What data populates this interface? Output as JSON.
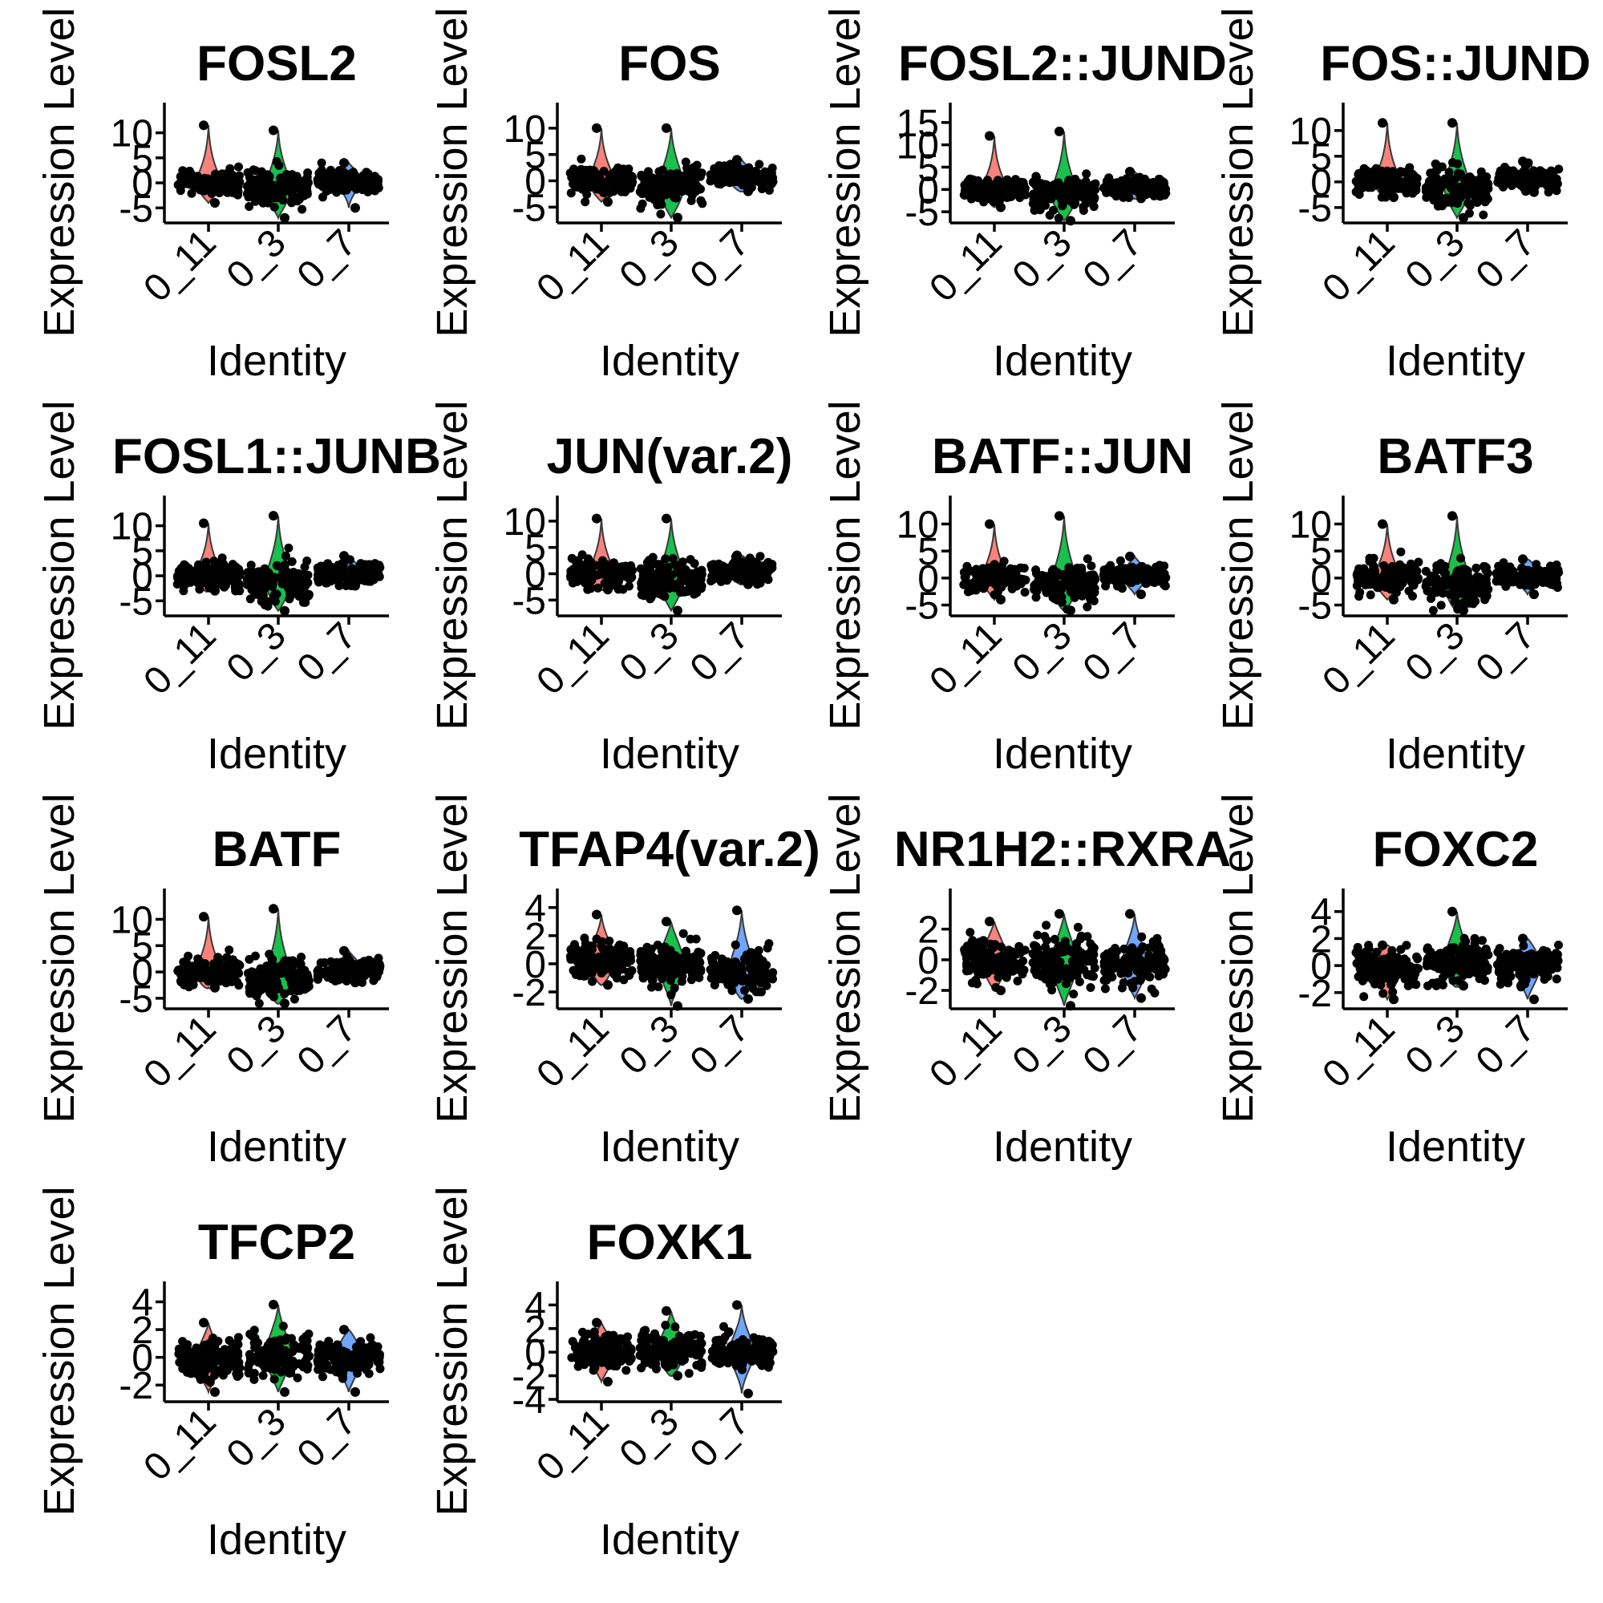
{
  "chart_data": [
    {
      "type": "violin",
      "title": "FOSL2",
      "xlabel": "Identity",
      "ylabel": "Expression Level",
      "categories": [
        "0_11",
        "0_3",
        "0_7"
      ],
      "yticks": [
        -5,
        0,
        5,
        10
      ],
      "ylim": [
        -8,
        12.5
      ],
      "series": [
        {
          "category": "0_11",
          "median": 0,
          "spread": 2.2,
          "max": 11.5,
          "min": -4
        },
        {
          "category": "0_3",
          "median": -1,
          "spread": 3.2,
          "max": 10.5,
          "min": -7
        },
        {
          "category": "0_7",
          "median": 0.5,
          "spread": 1.8,
          "max": 4,
          "min": -5
        }
      ]
    },
    {
      "type": "violin",
      "title": "FOS",
      "xlabel": "Identity",
      "ylabel": "Expression Level",
      "categories": [
        "0_11",
        "0_3",
        "0_7"
      ],
      "yticks": [
        -5,
        0,
        5,
        10
      ],
      "ylim": [
        -8,
        11.5
      ],
      "series": [
        {
          "category": "0_11",
          "median": 0,
          "spread": 2.3,
          "max": 10,
          "min": -4
        },
        {
          "category": "0_3",
          "median": -1,
          "spread": 3.4,
          "max": 10,
          "min": -7
        },
        {
          "category": "0_7",
          "median": 0.5,
          "spread": 1.8,
          "max": 4,
          "min": -2
        }
      ]
    },
    {
      "type": "violin",
      "title": "FOSL2::JUND",
      "xlabel": "Identity",
      "ylabel": "Expression Level",
      "categories": [
        "0_11",
        "0_3",
        "0_7"
      ],
      "yticks": [
        -5,
        0,
        5,
        10,
        15
      ],
      "ylim": [
        -7.5,
        15.5
      ],
      "series": [
        {
          "category": "0_11",
          "median": 0,
          "spread": 2.4,
          "max": 12,
          "min": -4
        },
        {
          "category": "0_3",
          "median": -1,
          "spread": 3.5,
          "max": 13,
          "min": -7
        },
        {
          "category": "0_7",
          "median": 0.5,
          "spread": 1.9,
          "max": 4,
          "min": -2
        }
      ]
    },
    {
      "type": "violin",
      "title": "FOS::JUND",
      "xlabel": "Identity",
      "ylabel": "Expression Level",
      "categories": [
        "0_11",
        "0_3",
        "0_7"
      ],
      "yticks": [
        -5,
        0,
        5,
        10
      ],
      "ylim": [
        -8,
        12
      ],
      "series": [
        {
          "category": "0_11",
          "median": 0,
          "spread": 2.3,
          "max": 11.5,
          "min": -3
        },
        {
          "category": "0_3",
          "median": -1,
          "spread": 3.3,
          "max": 11.5,
          "min": -7
        },
        {
          "category": "0_7",
          "median": 0.5,
          "spread": 1.8,
          "max": 4,
          "min": -2
        }
      ]
    },
    {
      "type": "violin",
      "title": "FOSL1::JUNB",
      "xlabel": "Identity",
      "ylabel": "Expression Level",
      "categories": [
        "0_11",
        "0_3",
        "0_7"
      ],
      "yticks": [
        -5,
        0,
        5,
        10
      ],
      "ylim": [
        -8,
        12.5
      ],
      "series": [
        {
          "category": "0_11",
          "median": 0,
          "spread": 2.4,
          "max": 10.5,
          "min": -3
        },
        {
          "category": "0_3",
          "median": -1,
          "spread": 3.5,
          "max": 12,
          "min": -7
        },
        {
          "category": "0_7",
          "median": 0.5,
          "spread": 1.9,
          "max": 4,
          "min": -2
        }
      ]
    },
    {
      "type": "violin",
      "title": "JUN(var.2)",
      "xlabel": "Identity",
      "ylabel": "Expression Level",
      "categories": [
        "0_11",
        "0_3",
        "0_7"
      ],
      "yticks": [
        -5,
        0,
        5,
        10
      ],
      "ylim": [
        -8,
        11.5
      ],
      "series": [
        {
          "category": "0_11",
          "median": 0,
          "spread": 2.3,
          "max": 10.5,
          "min": -3
        },
        {
          "category": "0_3",
          "median": -1,
          "spread": 3.4,
          "max": 10.5,
          "min": -7
        },
        {
          "category": "0_7",
          "median": 0.5,
          "spread": 1.8,
          "max": 3.5,
          "min": -2
        }
      ]
    },
    {
      "type": "violin",
      "title": "BATF::JUN",
      "xlabel": "Identity",
      "ylabel": "Expression Level",
      "categories": [
        "0_11",
        "0_3",
        "0_7"
      ],
      "yticks": [
        -5,
        0,
        5,
        10
      ],
      "ylim": [
        -7,
        12
      ],
      "series": [
        {
          "category": "0_11",
          "median": 0,
          "spread": 2.2,
          "max": 10,
          "min": -4
        },
        {
          "category": "0_3",
          "median": -1,
          "spread": 3.3,
          "max": 11.5,
          "min": -6
        },
        {
          "category": "0_7",
          "median": 0.5,
          "spread": 1.8,
          "max": 4,
          "min": -3
        }
      ]
    },
    {
      "type": "violin",
      "title": "BATF3",
      "xlabel": "Identity",
      "ylabel": "Expression Level",
      "categories": [
        "0_11",
        "0_3",
        "0_7"
      ],
      "yticks": [
        -5,
        0,
        5,
        10
      ],
      "ylim": [
        -7,
        12
      ],
      "series": [
        {
          "category": "0_11",
          "median": 0,
          "spread": 2.3,
          "max": 10,
          "min": -4
        },
        {
          "category": "0_3",
          "median": -1,
          "spread": 3.4,
          "max": 11.5,
          "min": -6
        },
        {
          "category": "0_7",
          "median": 0.5,
          "spread": 1.8,
          "max": 3.5,
          "min": -3
        }
      ]
    },
    {
      "type": "violin",
      "title": "BATF",
      "xlabel": "Identity",
      "ylabel": "Expression Level",
      "categories": [
        "0_11",
        "0_3",
        "0_7"
      ],
      "yticks": [
        -5,
        0,
        5,
        10
      ],
      "ylim": [
        -7,
        12.5
      ],
      "series": [
        {
          "category": "0_11",
          "median": 0,
          "spread": 2.3,
          "max": 10.5,
          "min": -3
        },
        {
          "category": "0_3",
          "median": -1,
          "spread": 3.4,
          "max": 12,
          "min": -6
        },
        {
          "category": "0_7",
          "median": 0.5,
          "spread": 1.8,
          "max": 4,
          "min": -2
        }
      ]
    },
    {
      "type": "violin",
      "title": "TFAP4(var.2)",
      "xlabel": "Identity",
      "ylabel": "Expression Level",
      "categories": [
        "0_11",
        "0_3",
        "0_7"
      ],
      "yticks": [
        -2,
        0,
        2,
        4
      ],
      "ylim": [
        -3.2,
        4.1
      ],
      "series": [
        {
          "category": "0_11",
          "median": 0.3,
          "spread": 1.2,
          "max": 3.5,
          "min": -1.5
        },
        {
          "category": "0_3",
          "median": 0,
          "spread": 1.4,
          "max": 3,
          "min": -3
        },
        {
          "category": "0_7",
          "median": -0.5,
          "spread": 1.3,
          "max": 3.8,
          "min": -2.5
        }
      ]
    },
    {
      "type": "violin",
      "title": "NR1H2::RXRA",
      "xlabel": "Identity",
      "ylabel": "Expression Level",
      "categories": [
        "0_11",
        "0_3",
        "0_7"
      ],
      "yticks": [
        -2,
        0,
        2
      ],
      "ylim": [
        -3.2,
        3.5
      ],
      "series": [
        {
          "category": "0_11",
          "median": 0,
          "spread": 1.2,
          "max": 2.5,
          "min": -2
        },
        {
          "category": "0_3",
          "median": -0.2,
          "spread": 1.4,
          "max": 3,
          "min": -3
        },
        {
          "category": "0_7",
          "median": -0.3,
          "spread": 1.2,
          "max": 3,
          "min": -2.5
        }
      ]
    },
    {
      "type": "violin",
      "title": "FOXC2",
      "xlabel": "Identity",
      "ylabel": "Expression Level",
      "categories": [
        "0_11",
        "0_3",
        "0_7"
      ],
      "yticks": [
        -2,
        0,
        2,
        4
      ],
      "ylim": [
        -3.2,
        4.4
      ],
      "series": [
        {
          "category": "0_11",
          "median": -0.3,
          "spread": 1.2,
          "max": 1.5,
          "min": -2.5
        },
        {
          "category": "0_3",
          "median": 0.3,
          "spread": 1.4,
          "max": 4,
          "min": -1.5
        },
        {
          "category": "0_7",
          "median": 0,
          "spread": 1.2,
          "max": 2,
          "min": -2.5
        }
      ]
    },
    {
      "type": "violin",
      "title": "TFCP2",
      "xlabel": "Identity",
      "ylabel": "Expression Level",
      "categories": [
        "0_11",
        "0_3",
        "0_7"
      ],
      "yticks": [
        -2,
        0,
        2,
        4
      ],
      "ylim": [
        -3.2,
        4.2
      ],
      "series": [
        {
          "category": "0_11",
          "median": -0.2,
          "spread": 1.2,
          "max": 2.5,
          "min": -2.5
        },
        {
          "category": "0_3",
          "median": 0.2,
          "spread": 1.4,
          "max": 3.8,
          "min": -2.5
        },
        {
          "category": "0_7",
          "median": 0,
          "spread": 1.2,
          "max": 2,
          "min": -2.5
        }
      ]
    },
    {
      "type": "violin",
      "title": "FOXK1",
      "xlabel": "Identity",
      "ylabel": "Expression Level",
      "categories": [
        "0_11",
        "0_3",
        "0_7"
      ],
      "yticks": [
        -4,
        -2,
        0,
        2,
        4
      ],
      "ylim": [
        -4.2,
        4.5
      ],
      "series": [
        {
          "category": "0_11",
          "median": 0,
          "spread": 1.3,
          "max": 2.5,
          "min": -2.5
        },
        {
          "category": "0_3",
          "median": 0.2,
          "spread": 1.5,
          "max": 3.5,
          "min": -2
        },
        {
          "category": "0_7",
          "median": 0,
          "spread": 1.3,
          "max": 4,
          "min": -3.5
        }
      ]
    }
  ],
  "colors": {
    "0_11": "#F8766D",
    "0_3": "#00BA38",
    "0_7": "#619CFF",
    "points": "#000000"
  }
}
